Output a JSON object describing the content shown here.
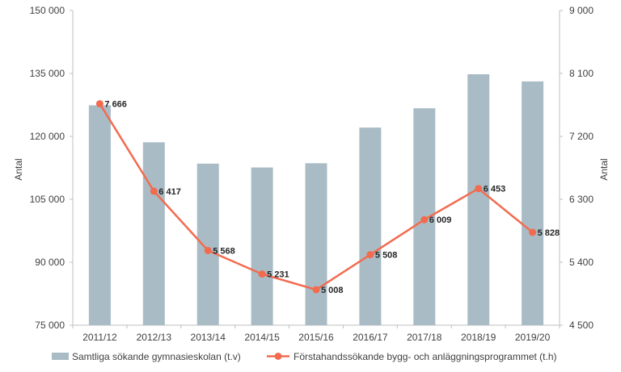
{
  "chart_data": {
    "type": "bar",
    "categories": [
      "2011/12",
      "2012/13",
      "2013/14",
      "2014/15",
      "2015/16",
      "2016/17",
      "2017/18",
      "2018/19",
      "2019/20"
    ],
    "series": [
      {
        "name": "Samtliga sökande gymnasieskolan (t.v)",
        "type": "bar",
        "axis": "left",
        "values": [
          127400,
          118600,
          113500,
          112600,
          113600,
          122100,
          126700,
          134800,
          133100
        ]
      },
      {
        "name": "Förstahandssökande bygg- och anläggningsprogrammet (t.h)",
        "type": "line",
        "axis": "right",
        "values": [
          7666,
          6417,
          5568,
          5231,
          5008,
          5508,
          6009,
          6453,
          5828
        ],
        "labels": [
          "7 666",
          "6 417",
          "5 568",
          "5 231",
          "5 008",
          "5 508",
          "6 009",
          "6 453",
          "5 828"
        ]
      }
    ],
    "y_left": {
      "label": "Antal",
      "ylim": [
        75000,
        150000
      ],
      "ticks": [
        75000,
        90000,
        105000,
        120000,
        135000,
        150000
      ],
      "tick_labels": [
        "75 000",
        "90 000",
        "105 000",
        "120 000",
        "135 000",
        "150 000"
      ]
    },
    "y_right": {
      "label": "Antal",
      "ylim": [
        4500,
        9000
      ],
      "ticks": [
        4500,
        5400,
        6300,
        7200,
        8100,
        9000
      ],
      "tick_labels": [
        "4 500",
        "5 400",
        "6 300",
        "7 200",
        "8 100",
        "9 000"
      ]
    },
    "grid": false,
    "legend_position": "bottom",
    "colors": {
      "bar": "#a9bcc6",
      "line": "#f26b4f",
      "axis": "#bfbfbf"
    }
  }
}
